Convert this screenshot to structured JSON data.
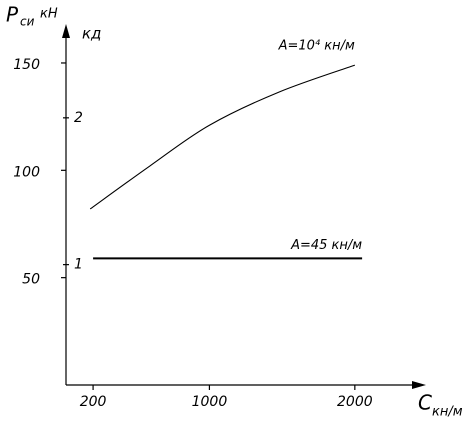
{
  "chart_data": {
    "type": "line",
    "y_label": "P",
    "y_label_sub": "си",
    "y_label_unit": "кН",
    "y2_label": "кд",
    "x_label": "C",
    "x_label_sub": "кн/м",
    "xlim": [
      0,
      2400
    ],
    "xticks": [
      200,
      1000,
      2000
    ],
    "ylim": [
      0,
      160
    ],
    "yticks": [
      50,
      100,
      150
    ],
    "y2lim": [
      0.18,
      2.52
    ],
    "y2ticks": [
      1,
      2
    ],
    "series": [
      {
        "name": "A=10⁴ кн/м",
        "color": "#000000",
        "x": [
          180,
          590,
          1000,
          1480,
          2000
        ],
        "values": [
          82,
          102,
          121,
          136.5,
          149
        ]
      },
      {
        "name": "A=45 кн/м",
        "color": "#000000",
        "x": [
          200,
          2050
        ],
        "values": [
          59,
          59
        ]
      }
    ]
  }
}
